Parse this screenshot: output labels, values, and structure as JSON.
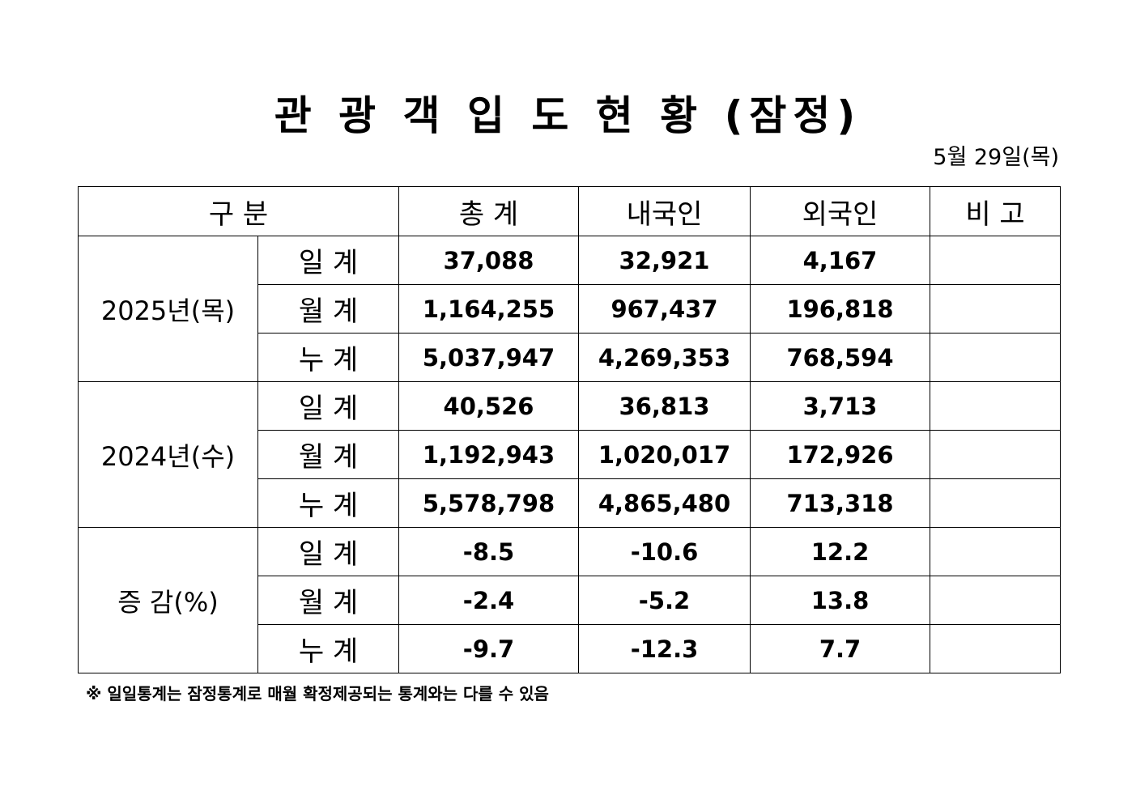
{
  "title": "관 광 객 입 도 현 황 (잠정)",
  "date": "5월  29일(목)",
  "headers": [
    "구   분",
    "총   계",
    "내국인",
    "외국인",
    "비   고"
  ],
  "groups": [
    {
      "label": "2025년(목)",
      "rows": [
        {
          "type": "일 계",
          "total": "37,088",
          "domestic": "32,921",
          "foreign": "4,167",
          "remark": ""
        },
        {
          "type": "월 계",
          "total": "1,164,255",
          "domestic": "967,437",
          "foreign": "196,818",
          "remark": ""
        },
        {
          "type": "누 계",
          "total": "5,037,947",
          "domestic": "4,269,353",
          "foreign": "768,594",
          "remark": ""
        }
      ]
    },
    {
      "label": "2024년(수)",
      "rows": [
        {
          "type": "일 계",
          "total": "40,526",
          "domestic": "36,813",
          "foreign": "3,713",
          "remark": ""
        },
        {
          "type": "월 계",
          "total": "1,192,943",
          "domestic": "1,020,017",
          "foreign": "172,926",
          "remark": ""
        },
        {
          "type": "누 계",
          "total": "5,578,798",
          "domestic": "4,865,480",
          "foreign": "713,318",
          "remark": ""
        }
      ]
    },
    {
      "label": "증  감(%)",
      "rows": [
        {
          "type": "일 계",
          "total": "-8.5",
          "domestic": "-10.6",
          "foreign": "12.2",
          "remark": ""
        },
        {
          "type": "월 계",
          "total": "-2.4",
          "domestic": "-5.2",
          "foreign": "13.8",
          "remark": ""
        },
        {
          "type": "누 계",
          "total": "-9.7",
          "domestic": "-12.3",
          "foreign": "7.7",
          "remark": ""
        }
      ]
    }
  ],
  "footnote": "※ 일일통계는 잠정통계로 매월 확정제공되는 통계와는 다를 수 있음"
}
